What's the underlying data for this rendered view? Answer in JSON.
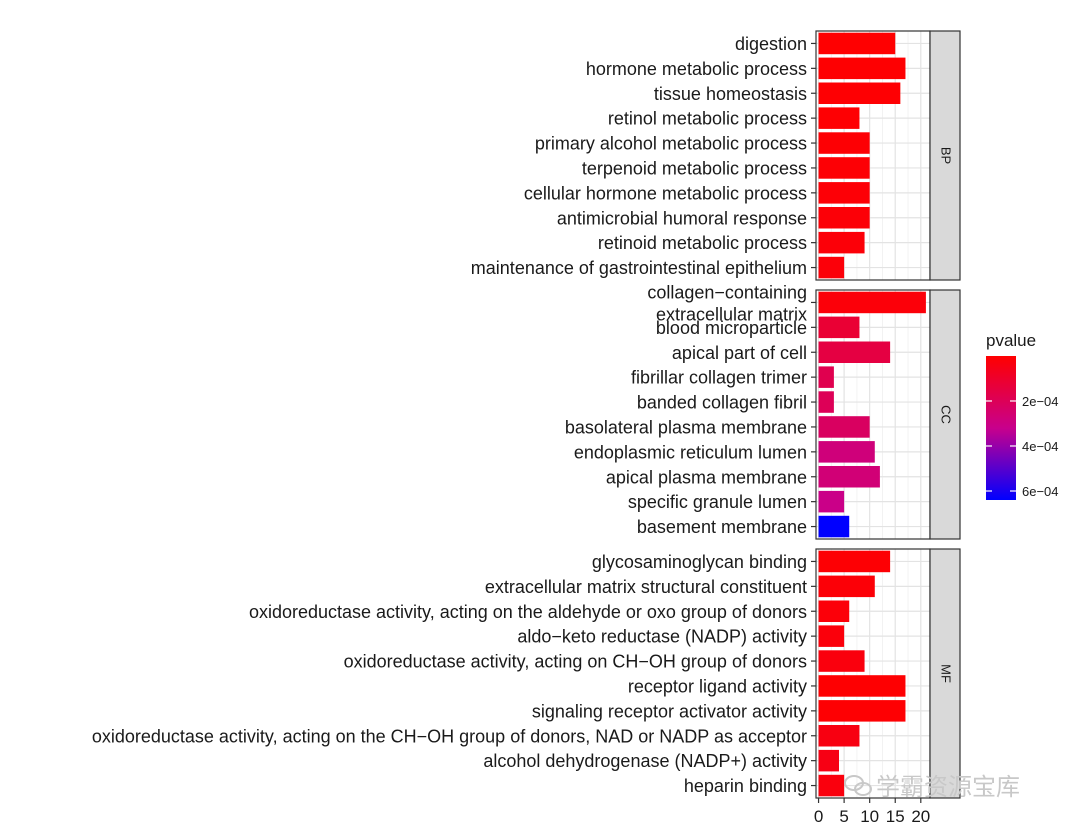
{
  "chart_data": {
    "type": "bar",
    "orientation": "horizontal",
    "x_ticks": [
      0,
      5,
      10,
      15,
      20
    ],
    "xlim": [
      -0.5,
      21.8
    ],
    "legend": {
      "title": "pvalue",
      "placement": "right",
      "ticks": [
        {
          "value": 0.0002,
          "label": "2e−04"
        },
        {
          "value": 0.0004,
          "label": "4e−04"
        },
        {
          "value": 0.0006,
          "label": "6e−04"
        }
      ],
      "range": [
        1e-07,
        0.00064
      ],
      "color_low": "#ff0000",
      "color_mid": "#c8008c",
      "color_high": "#0000ff"
    },
    "facets": [
      {
        "name": "BP",
        "items": [
          {
            "label": "digestion",
            "value": 15,
            "pvalue": 2e-06
          },
          {
            "label": "hormone metabolic process",
            "value": 17,
            "pvalue": 4e-06
          },
          {
            "label": "tissue homeostasis",
            "value": 16,
            "pvalue": 6e-06
          },
          {
            "label": "retinol metabolic process",
            "value": 8,
            "pvalue": 8e-06
          },
          {
            "label": "primary alcohol metabolic process",
            "value": 10,
            "pvalue": 1e-05
          },
          {
            "label": "terpenoid metabolic process",
            "value": 10,
            "pvalue": 1.2e-05
          },
          {
            "label": "cellular hormone metabolic process",
            "value": 10,
            "pvalue": 1.4e-05
          },
          {
            "label": "antimicrobial humoral response",
            "value": 10,
            "pvalue": 1.6e-05
          },
          {
            "label": "retinoid metabolic process",
            "value": 9,
            "pvalue": 1.8e-05
          },
          {
            "label": "maintenance of gastrointestinal epithelium",
            "value": 5,
            "pvalue": 2e-05
          }
        ]
      },
      {
        "name": "CC",
        "items": [
          {
            "label": "collagen−containing\nextracellular matrix",
            "value": 21,
            "pvalue": 2e-05
          },
          {
            "label": "blood microparticle",
            "value": 8,
            "pvalue": 0.00012
          },
          {
            "label": "apical part of cell",
            "value": 14,
            "pvalue": 0.00015
          },
          {
            "label": "fibrillar collagen trimer",
            "value": 3,
            "pvalue": 0.00018
          },
          {
            "label": "banded collagen fibril",
            "value": 3,
            "pvalue": 0.0002
          },
          {
            "label": "basolateral plasma membrane",
            "value": 10,
            "pvalue": 0.00022
          },
          {
            "label": "endoplasmic reticulum lumen",
            "value": 11,
            "pvalue": 0.00028
          },
          {
            "label": "apical plasma membrane",
            "value": 12,
            "pvalue": 0.00027
          },
          {
            "label": "specific granule lumen",
            "value": 5,
            "pvalue": 0.00031
          },
          {
            "label": "basement membrane",
            "value": 6,
            "pvalue": 0.00064
          }
        ]
      },
      {
        "name": "MF",
        "items": [
          {
            "label": "glycosaminoglycan binding",
            "value": 14,
            "pvalue": 1e-05
          },
          {
            "label": "extracellular matrix structural constituent",
            "value": 11,
            "pvalue": 1.5e-05
          },
          {
            "label": "oxidoreductase activity, acting on the aldehyde or oxo group of donors",
            "value": 6,
            "pvalue": 2e-05
          },
          {
            "label": "aldo−keto reductase (NADP) activity",
            "value": 5,
            "pvalue": 2.5e-05
          },
          {
            "label": "oxidoreductase activity, acting on CH−OH group of donors",
            "value": 9,
            "pvalue": 3e-05
          },
          {
            "label": "receptor ligand activity",
            "value": 17,
            "pvalue": 5e-06
          },
          {
            "label": "signaling receptor activator activity",
            "value": 17,
            "pvalue": 6e-06
          },
          {
            "label": "oxidoreductase activity, acting on the CH−OH group of donors, NAD or NADP as acceptor",
            "value": 8,
            "pvalue": 4e-05
          },
          {
            "label": "alcohol dehydrogenase (NADP+) activity",
            "value": 4,
            "pvalue": 4.5e-05
          },
          {
            "label": "heparin binding",
            "value": 5,
            "pvalue": 3e-05
          }
        ]
      }
    ]
  },
  "watermark": {
    "text": "学霸资源宝库",
    "icon": "wechat-icon"
  }
}
